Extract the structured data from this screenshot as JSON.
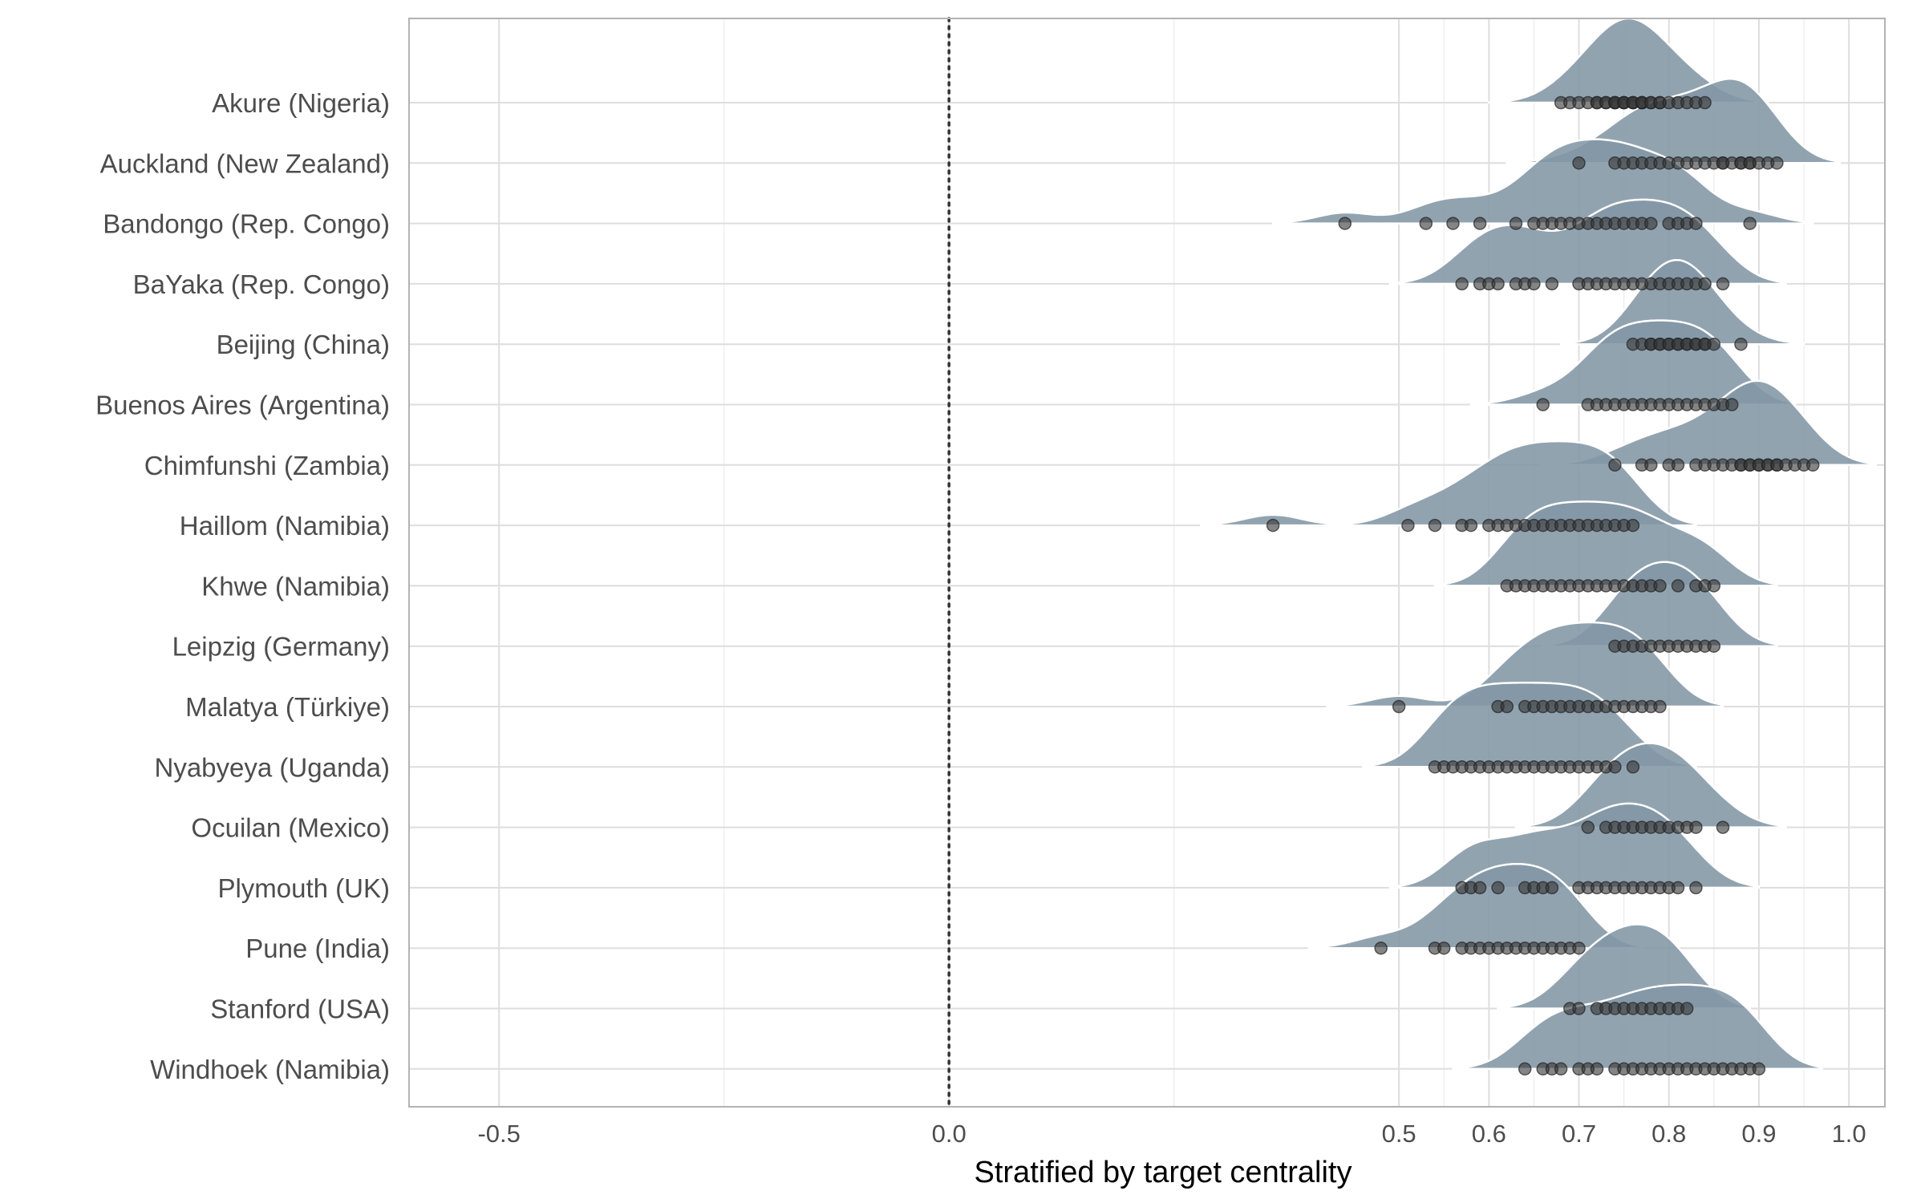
{
  "chart_data": {
    "type": "ridgeline",
    "title": "",
    "xlabel": "Stratified by target centrality",
    "ylabel": "",
    "xlim": [
      -0.6,
      1.04
    ],
    "x_ticks": [
      -0.5,
      0.0,
      0.5,
      0.6,
      0.7,
      0.8,
      0.9,
      1.0
    ],
    "x_tick_labels": [
      "-0.5",
      "0.0",
      "0.5",
      "0.6",
      "0.7",
      "0.8",
      "0.9",
      "1.0"
    ],
    "reference_line": {
      "x": 0.0,
      "style": "dotted"
    },
    "grid": true,
    "legend": "none",
    "colors": {
      "fill": "#8396a5",
      "fill_overlay": "#3b5770",
      "points": "#333333",
      "reference": "#333333",
      "grid": "#e0e0e0"
    },
    "categories": [
      "Akure (Nigeria)",
      "Auckland (New Zealand)",
      "Bandongo (Rep. Congo)",
      "BaYaka (Rep. Congo)",
      "Beijing (China)",
      "Buenos Aires (Argentina)",
      "Chimfunshi (Zambia)",
      "Haillom (Namibia)",
      "Khwe (Namibia)",
      "Leipzig (Germany)",
      "Malatya (Türkiye)",
      "Nyabyeya (Uganda)",
      "Ocuilan (Mexico)",
      "Plymouth (UK)",
      "Pune (India)",
      "Stanford (USA)",
      "Windhoek (Namibia)"
    ],
    "series": [
      {
        "points": [
          0.68,
          0.69,
          0.7,
          0.71,
          0.72,
          0.72,
          0.73,
          0.73,
          0.74,
          0.74,
          0.74,
          0.75,
          0.75,
          0.75,
          0.76,
          0.76,
          0.76,
          0.77,
          0.77,
          0.77,
          0.78,
          0.78,
          0.79,
          0.79,
          0.8,
          0.81,
          0.82,
          0.83,
          0.84
        ]
      },
      {
        "points": [
          0.7,
          0.74,
          0.75,
          0.76,
          0.77,
          0.78,
          0.79,
          0.8,
          0.81,
          0.82,
          0.83,
          0.84,
          0.85,
          0.86,
          0.86,
          0.87,
          0.88,
          0.88,
          0.89,
          0.89,
          0.9,
          0.91,
          0.92
        ]
      },
      {
        "points": [
          0.44,
          0.53,
          0.56,
          0.59,
          0.63,
          0.65,
          0.66,
          0.67,
          0.68,
          0.69,
          0.7,
          0.71,
          0.72,
          0.73,
          0.74,
          0.75,
          0.76,
          0.77,
          0.78,
          0.8,
          0.81,
          0.82,
          0.83,
          0.89
        ]
      },
      {
        "points": [
          0.57,
          0.59,
          0.6,
          0.61,
          0.63,
          0.64,
          0.65,
          0.67,
          0.7,
          0.71,
          0.72,
          0.73,
          0.74,
          0.75,
          0.76,
          0.77,
          0.78,
          0.79,
          0.8,
          0.81,
          0.82,
          0.83,
          0.84,
          0.86
        ]
      },
      {
        "points": [
          0.76,
          0.77,
          0.78,
          0.78,
          0.79,
          0.79,
          0.8,
          0.8,
          0.81,
          0.81,
          0.82,
          0.82,
          0.83,
          0.83,
          0.84,
          0.84,
          0.85,
          0.88
        ]
      },
      {
        "points": [
          0.66,
          0.71,
          0.72,
          0.73,
          0.74,
          0.75,
          0.76,
          0.77,
          0.78,
          0.79,
          0.8,
          0.81,
          0.82,
          0.83,
          0.84,
          0.85,
          0.86,
          0.87
        ]
      },
      {
        "points": [
          0.74,
          0.77,
          0.78,
          0.8,
          0.81,
          0.83,
          0.84,
          0.85,
          0.86,
          0.87,
          0.88,
          0.88,
          0.89,
          0.89,
          0.9,
          0.9,
          0.91,
          0.91,
          0.92,
          0.92,
          0.93,
          0.94,
          0.95,
          0.96
        ]
      },
      {
        "points": [
          0.36,
          0.51,
          0.54,
          0.57,
          0.58,
          0.6,
          0.61,
          0.62,
          0.63,
          0.64,
          0.65,
          0.66,
          0.67,
          0.68,
          0.69,
          0.7,
          0.71,
          0.72,
          0.73,
          0.74,
          0.75,
          0.76
        ]
      },
      {
        "points": [
          0.62,
          0.63,
          0.64,
          0.65,
          0.66,
          0.67,
          0.68,
          0.69,
          0.7,
          0.71,
          0.72,
          0.73,
          0.74,
          0.75,
          0.76,
          0.77,
          0.78,
          0.79,
          0.81,
          0.83,
          0.84,
          0.85
        ]
      },
      {
        "points": [
          0.74,
          0.75,
          0.76,
          0.77,
          0.78,
          0.79,
          0.8,
          0.81,
          0.82,
          0.83,
          0.84,
          0.85
        ]
      },
      {
        "points": [
          0.5,
          0.61,
          0.62,
          0.64,
          0.65,
          0.66,
          0.67,
          0.68,
          0.69,
          0.7,
          0.71,
          0.72,
          0.73,
          0.74,
          0.75,
          0.76,
          0.77,
          0.78,
          0.79
        ]
      },
      {
        "points": [
          0.54,
          0.55,
          0.56,
          0.57,
          0.58,
          0.59,
          0.6,
          0.61,
          0.62,
          0.63,
          0.64,
          0.65,
          0.66,
          0.67,
          0.68,
          0.69,
          0.7,
          0.71,
          0.72,
          0.73,
          0.74,
          0.76
        ]
      },
      {
        "points": [
          0.71,
          0.73,
          0.74,
          0.75,
          0.76,
          0.77,
          0.78,
          0.79,
          0.8,
          0.81,
          0.82,
          0.83,
          0.86
        ]
      },
      {
        "points": [
          0.57,
          0.58,
          0.59,
          0.61,
          0.64,
          0.65,
          0.66,
          0.67,
          0.7,
          0.71,
          0.72,
          0.73,
          0.74,
          0.75,
          0.76,
          0.77,
          0.78,
          0.79,
          0.8,
          0.81,
          0.83
        ]
      },
      {
        "points": [
          0.48,
          0.54,
          0.55,
          0.57,
          0.58,
          0.59,
          0.6,
          0.61,
          0.62,
          0.63,
          0.64,
          0.65,
          0.66,
          0.67,
          0.68,
          0.69,
          0.7
        ]
      },
      {
        "points": [
          0.69,
          0.7,
          0.72,
          0.73,
          0.74,
          0.75,
          0.76,
          0.77,
          0.78,
          0.79,
          0.8,
          0.81,
          0.82
        ]
      },
      {
        "points": [
          0.64,
          0.66,
          0.67,
          0.68,
          0.7,
          0.71,
          0.72,
          0.74,
          0.75,
          0.76,
          0.77,
          0.78,
          0.79,
          0.8,
          0.81,
          0.82,
          0.83,
          0.84,
          0.85,
          0.86,
          0.87,
          0.88,
          0.89,
          0.9
        ]
      }
    ]
  }
}
